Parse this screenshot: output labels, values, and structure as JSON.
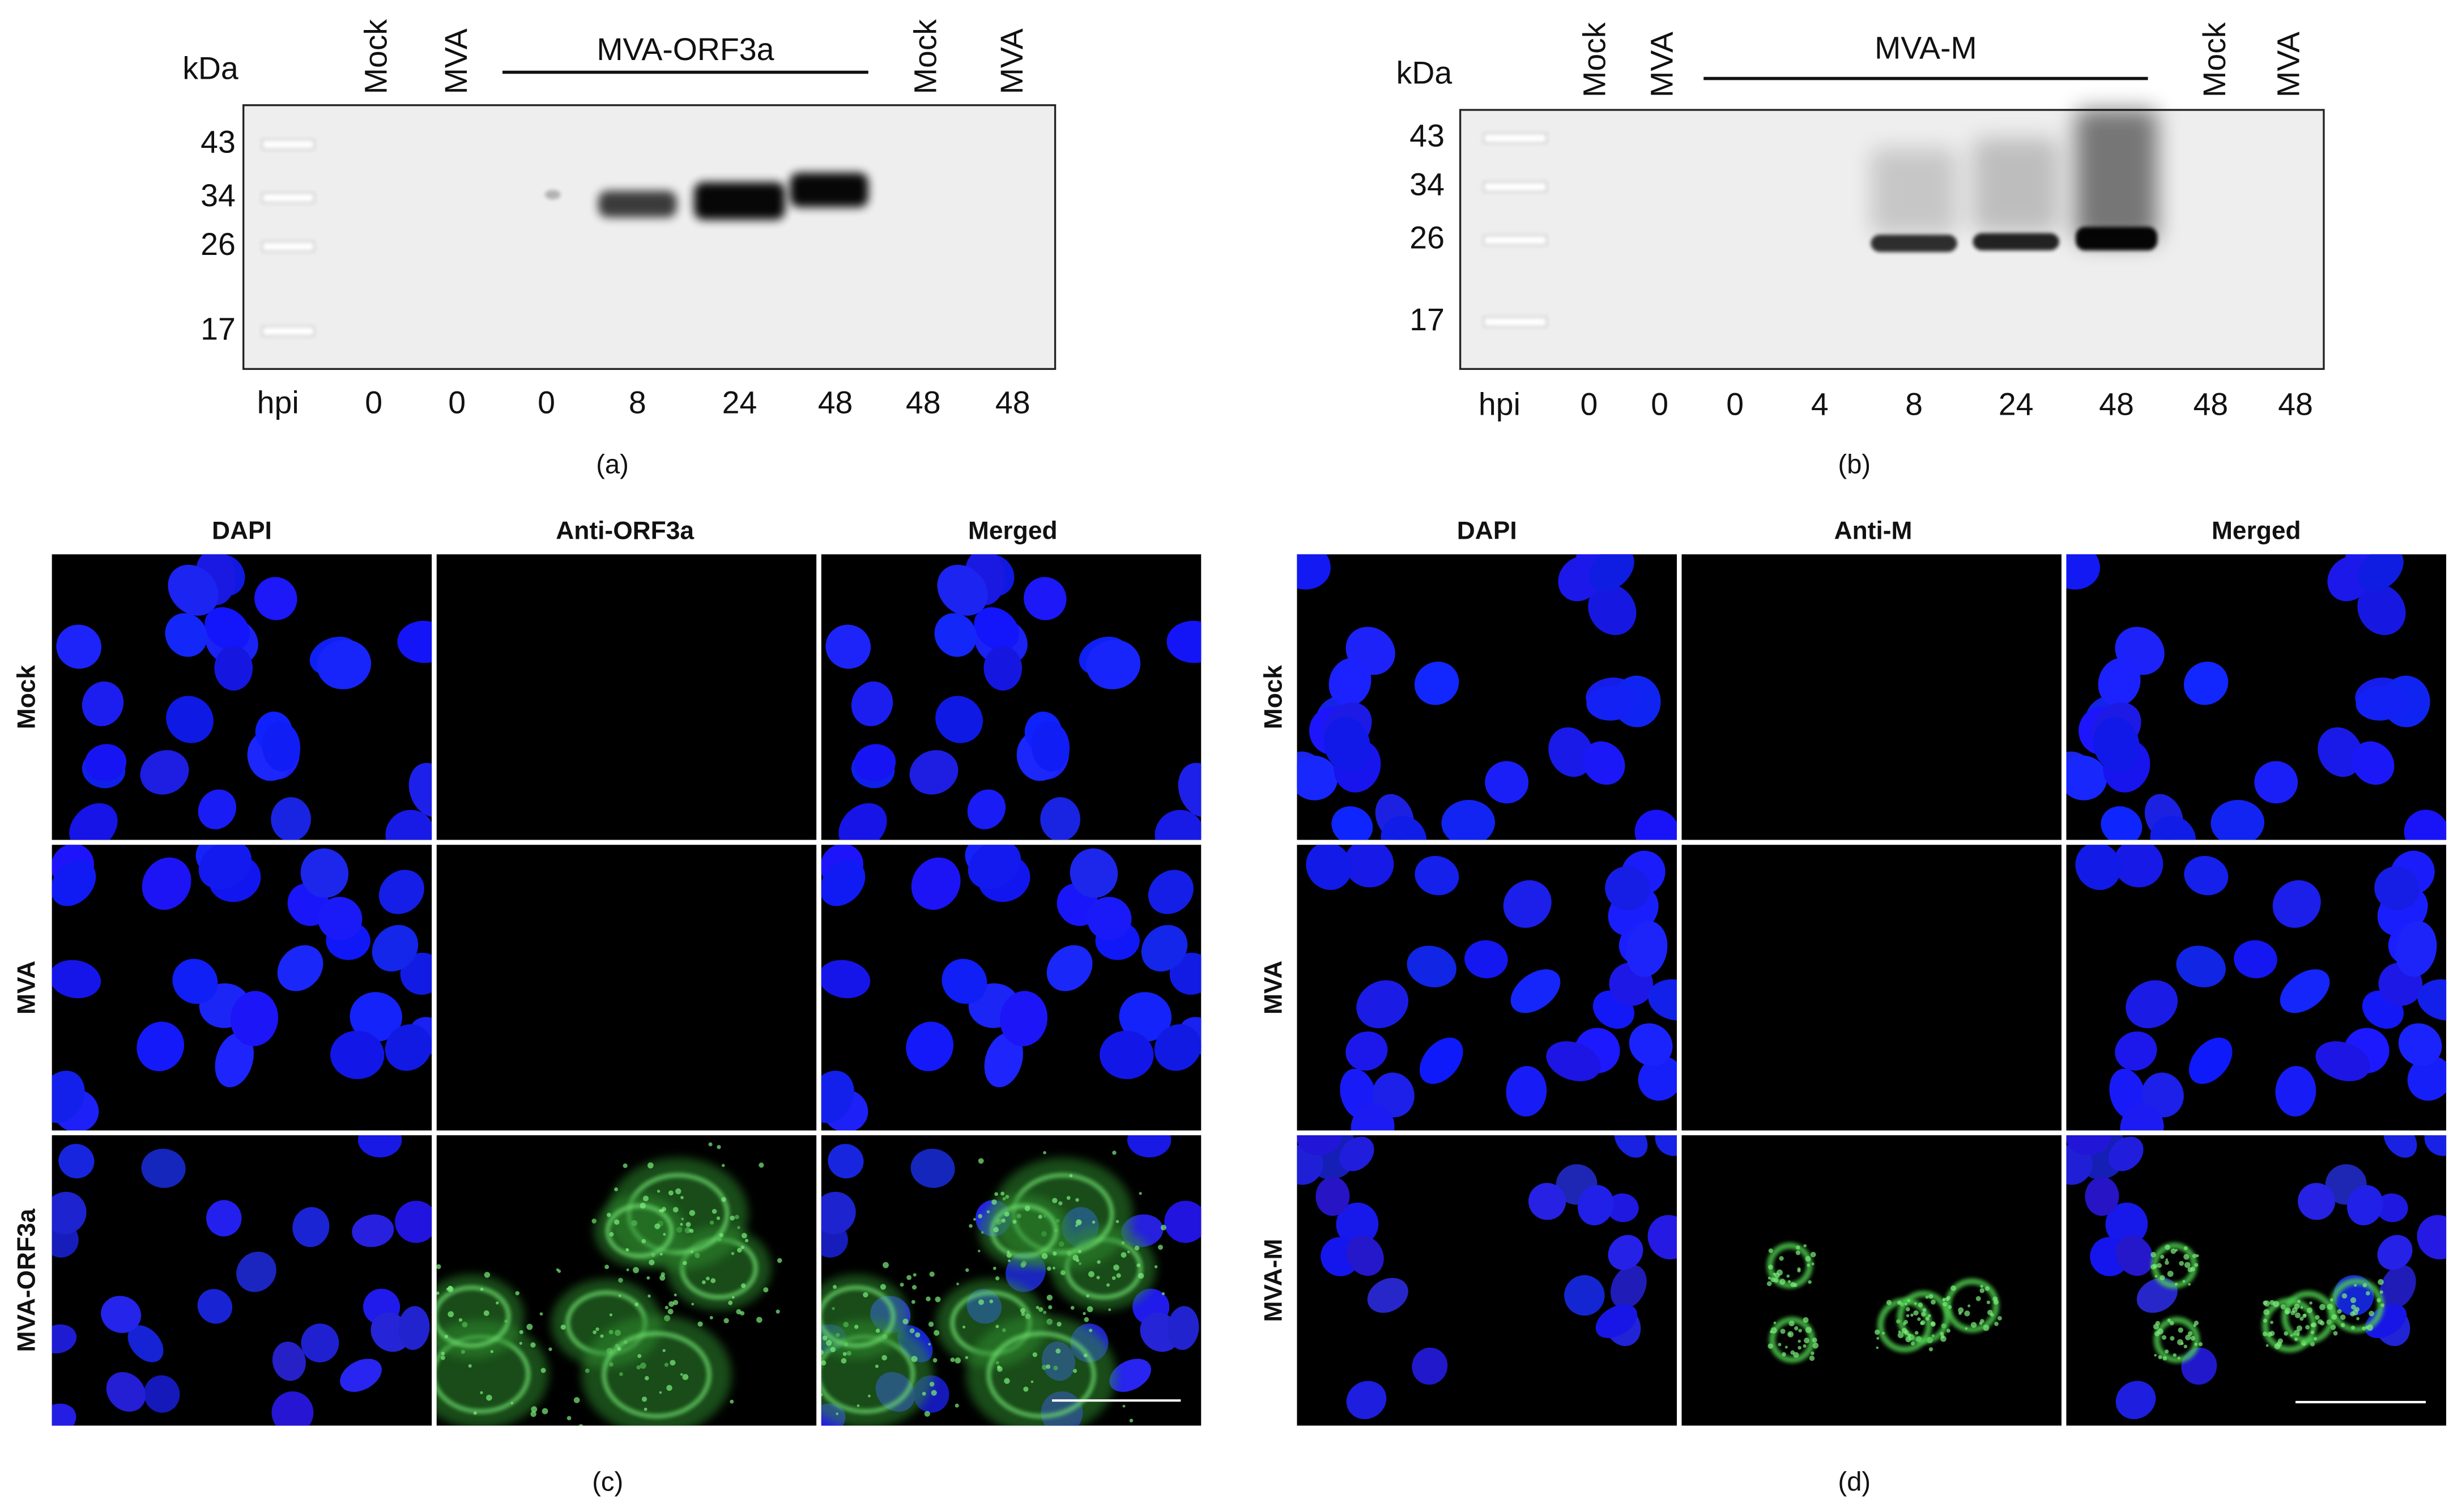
{
  "panels": [
    {
      "caption": "(a)",
      "unit": "kDa",
      "markers": [
        "43",
        "34",
        "26",
        "17"
      ],
      "lanes_top": [
        "Mock",
        "MVA",
        "Mock",
        "MVA"
      ],
      "group": "MVA-ORF3a",
      "hpi_label": "hpi",
      "hpi": [
        "0",
        "0",
        "0",
        "8",
        "24",
        "48",
        "48",
        "48"
      ]
    },
    {
      "caption": "(b)",
      "unit": "kDa",
      "markers": [
        "43",
        "34",
        "26",
        "17"
      ],
      "lanes_top": [
        "Mock",
        "MVA",
        "Mock",
        "MVA"
      ],
      "group": "MVA-M",
      "hpi_label": "hpi",
      "hpi": [
        "0",
        "0",
        "0",
        "4",
        "8",
        "24",
        "48",
        "48",
        "48"
      ]
    }
  ],
  "images": [
    {
      "caption": "(c)",
      "columns": [
        "DAPI",
        "Anti-ORF3a",
        "Merged"
      ],
      "rows": [
        "Mock",
        "MVA",
        "MVA-ORF3a"
      ]
    },
    {
      "caption": "(d)",
      "columns": [
        "DAPI",
        "Anti-M",
        "Merged"
      ],
      "rows": [
        "Mock",
        "MVA",
        "MVA-M"
      ]
    }
  ]
}
